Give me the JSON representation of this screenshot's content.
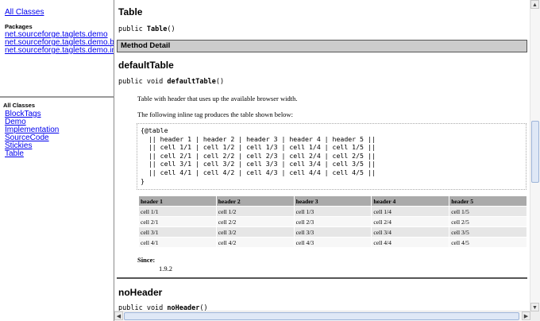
{
  "package_frame": {
    "all_classes_link": "All Classes",
    "packages_heading": "Packages",
    "packages": [
      "net.sourceforge.taglets.demo",
      "net.sourceforge.taglets.demo.block",
      "net.sourceforge.taglets.demo.inline"
    ]
  },
  "class_frame": {
    "heading": "All Classes",
    "classes": [
      "BlockTags",
      "Demo",
      "Implementation",
      "SourceCode",
      "Stickies",
      "Table"
    ]
  },
  "main": {
    "constructor_title": "Table",
    "constructor_sig_prefix": "public ",
    "constructor_sig_name": "Table",
    "constructor_sig_suffix": "()",
    "method_detail_label": "Method Detail",
    "method1": {
      "title": "defaultTable",
      "sig_prefix": "public void ",
      "sig_name": "defaultTable",
      "sig_suffix": "()",
      "description": "Table with header that uses up the available browser width.",
      "inline_intro": "The following inline tag produces the table shown below:",
      "code": "{@table\n  || header 1 | header 2 | header 3 | header 4 | header 5 ||\n  || cell 1/1 | cell 1/2 | cell 1/3 | cell 1/4 | cell 1/5 ||\n  || cell 2/1 | cell 2/2 | cell 2/3 | cell 2/4 | cell 2/5 ||\n  || cell 3/1 | cell 3/2 | cell 3/3 | cell 3/4 | cell 3/5 ||\n  || cell 4/1 | cell 4/2 | cell 4/3 | cell 4/4 | cell 4/5 ||\n}",
      "table_headers": [
        "header 1",
        "header 2",
        "header 3",
        "header 4",
        "header 5"
      ],
      "table_rows": [
        [
          "cell 1/1",
          "cell 1/2",
          "cell 1/3",
          "cell 1/4",
          "cell 1/5"
        ],
        [
          "cell 2/1",
          "cell 2/2",
          "cell 2/3",
          "cell 2/4",
          "cell 2/5"
        ],
        [
          "cell 3/1",
          "cell 3/2",
          "cell 3/3",
          "cell 3/4",
          "cell 3/5"
        ],
        [
          "cell 4/1",
          "cell 4/2",
          "cell 4/3",
          "cell 4/4",
          "cell 4/5"
        ]
      ],
      "since_label": "Since:",
      "since_value": "1.9.2"
    },
    "method2": {
      "title": "noHeader",
      "sig_prefix": "public void ",
      "sig_name": "noHeader",
      "sig_suffix": "()"
    }
  },
  "scrollbar_icons": {
    "up": "arrow-up-icon",
    "down": "arrow-down-icon",
    "left": "arrow-left-icon",
    "right": "arrow-right-icon"
  }
}
